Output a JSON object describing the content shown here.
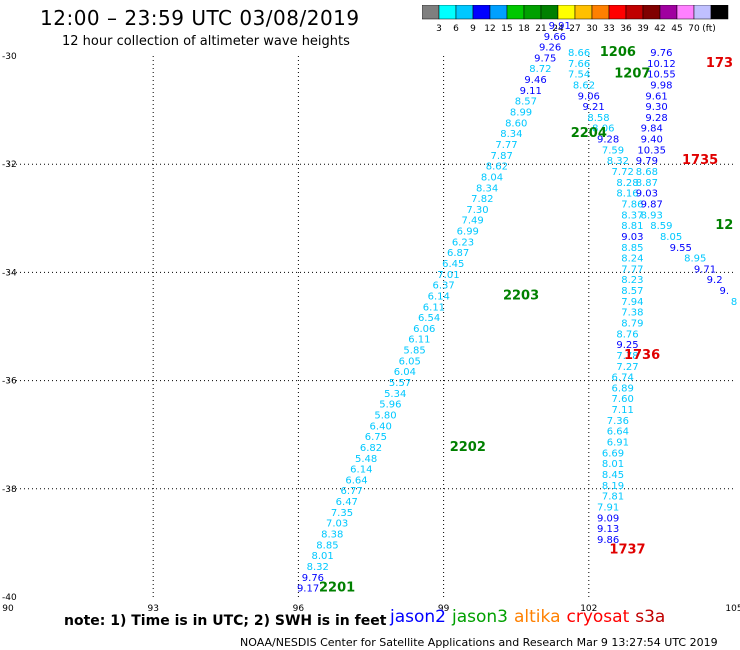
{
  "header": {
    "title": "12:00 – 23:59 UTC 03/08/2019",
    "subtitle": "12 hour collection of altimeter wave heights"
  },
  "color_scale": {
    "colors": [
      "#7f7f7f",
      "#00ffff",
      "#00c8ff",
      "#0000ff",
      "#00a0ff",
      "#00c800",
      "#00a000",
      "#008000",
      "#ffff00",
      "#ffc000",
      "#ff8000",
      "#ff0000",
      "#c00000",
      "#800000",
      "#a000a0",
      "#ff80ff",
      "#c0c0ff",
      "#000000"
    ],
    "labels": [
      "3",
      "6",
      "9",
      "12",
      "15",
      "18",
      "21",
      "24",
      "27",
      "30",
      "33",
      "36",
      "39",
      "42",
      "45",
      "70",
      "(ft)"
    ]
  },
  "note": "note: 1) Time is in UTC; 2) SWH is in feet",
  "legend": [
    {
      "name": "jason2",
      "color": "#0000ff"
    },
    {
      "name": "jason3",
      "color": "#00a000"
    },
    {
      "name": "altika",
      "color": "#ff8000"
    },
    {
      "name": "cryosat",
      "color": "#ff0000"
    },
    {
      "name": "s3a",
      "color": "#c00000"
    }
  ],
  "footer": "NOAA/NESDIS Center for Satellite Applications and Research    Mar  9 13:27:54 UTC 2019",
  "chart_data": {
    "type": "scatter",
    "xlim": [
      90,
      105
    ],
    "ylim": [
      -40,
      -30
    ],
    "x_ticks": [
      "90",
      "93",
      "96",
      "99",
      "102",
      "105"
    ],
    "y_ticks": [
      "-30",
      "-32",
      "-34",
      "-36",
      "-38",
      "-40"
    ],
    "grid": true,
    "time_labels": [
      {
        "text": "2201",
        "lon": 96.8,
        "lat": -39.9,
        "color": "#008000"
      },
      {
        "text": "2202",
        "lon": 99.5,
        "lat": -37.3,
        "color": "#008000"
      },
      {
        "text": "2203",
        "lon": 100.6,
        "lat": -34.5,
        "color": "#008000"
      },
      {
        "text": "2204",
        "lon": 102.0,
        "lat": -31.5,
        "color": "#008000"
      },
      {
        "text": "1206",
        "lon": 102.6,
        "lat": -30.0,
        "color": "#008000"
      },
      {
        "text": "1207",
        "lon": 102.9,
        "lat": -30.4,
        "color": "#008000"
      },
      {
        "text": "12",
        "lon": 104.8,
        "lat": -33.2,
        "color": "#008000"
      },
      {
        "text": "1735",
        "lon": 104.3,
        "lat": -32.0,
        "color": "#e00000"
      },
      {
        "text": "173",
        "lon": 104.7,
        "lat": -30.2,
        "color": "#e00000"
      },
      {
        "text": "1736",
        "lon": 103.1,
        "lat": -35.6,
        "color": "#e00000"
      },
      {
        "text": "1737",
        "lon": 102.8,
        "lat": -39.2,
        "color": "#e00000"
      }
    ],
    "series": [
      {
        "name": "jason3",
        "points": [
          {
            "lon": 96.2,
            "lat": -39.9,
            "v": "9.17",
            "c": "#0000ff"
          },
          {
            "lon": 96.3,
            "lat": -39.7,
            "v": "9.76",
            "c": "#0000ff"
          },
          {
            "lon": 96.4,
            "lat": -39.5,
            "v": "8.32",
            "c": "#00c8ff"
          },
          {
            "lon": 96.5,
            "lat": -39.3,
            "v": "8.01",
            "c": "#00c8ff"
          },
          {
            "lon": 96.6,
            "lat": -39.1,
            "v": "8.85",
            "c": "#00c8ff"
          },
          {
            "lon": 96.7,
            "lat": -38.9,
            "v": "8.38",
            "c": "#00c8ff"
          },
          {
            "lon": 96.8,
            "lat": -38.7,
            "v": "7.03",
            "c": "#00c8ff"
          },
          {
            "lon": 96.9,
            "lat": -38.5,
            "v": "7.35",
            "c": "#00c8ff"
          },
          {
            "lon": 97.0,
            "lat": -38.3,
            "v": "6.47",
            "c": "#00c8ff"
          },
          {
            "lon": 97.1,
            "lat": -38.1,
            "v": "6.77",
            "c": "#00c8ff"
          },
          {
            "lon": 97.2,
            "lat": -37.9,
            "v": "6.64",
            "c": "#00c8ff"
          },
          {
            "lon": 97.3,
            "lat": -37.7,
            "v": "6.14",
            "c": "#00c8ff"
          },
          {
            "lon": 97.4,
            "lat": -37.5,
            "v": "5.48",
            "c": "#00c8ff"
          },
          {
            "lon": 97.5,
            "lat": -37.3,
            "v": "6.82",
            "c": "#00c8ff"
          },
          {
            "lon": 97.6,
            "lat": -37.1,
            "v": "6.75",
            "c": "#00c8ff"
          },
          {
            "lon": 97.7,
            "lat": -36.9,
            "v": "6.40",
            "c": "#00c8ff"
          },
          {
            "lon": 97.8,
            "lat": -36.7,
            "v": "5.80",
            "c": "#00c8ff"
          },
          {
            "lon": 97.9,
            "lat": -36.5,
            "v": "5.96",
            "c": "#00c8ff"
          },
          {
            "lon": 98.0,
            "lat": -36.3,
            "v": "5.34",
            "c": "#00c8ff"
          },
          {
            "lon": 98.1,
            "lat": -36.1,
            "v": "5.57",
            "c": "#00c8ff"
          },
          {
            "lon": 98.2,
            "lat": -35.9,
            "v": "6.04",
            "c": "#00c8ff"
          },
          {
            "lon": 98.3,
            "lat": -35.7,
            "v": "6.05",
            "c": "#00c8ff"
          },
          {
            "lon": 98.4,
            "lat": -35.5,
            "v": "5.85",
            "c": "#00c8ff"
          },
          {
            "lon": 98.5,
            "lat": -35.3,
            "v": "6.11",
            "c": "#00c8ff"
          },
          {
            "lon": 98.6,
            "lat": -35.1,
            "v": "6.06",
            "c": "#00c8ff"
          },
          {
            "lon": 98.7,
            "lat": -34.9,
            "v": "6.54",
            "c": "#00c8ff"
          },
          {
            "lon": 98.8,
            "lat": -34.7,
            "v": "6.11",
            "c": "#00c8ff"
          },
          {
            "lon": 98.9,
            "lat": -34.5,
            "v": "6.14",
            "c": "#00c8ff"
          },
          {
            "lon": 99.0,
            "lat": -34.3,
            "v": "6.37",
            "c": "#00c8ff"
          },
          {
            "lon": 99.1,
            "lat": -34.1,
            "v": "7.01",
            "c": "#00c8ff"
          },
          {
            "lon": 99.2,
            "lat": -33.9,
            "v": "6.45",
            "c": "#00c8ff"
          },
          {
            "lon": 99.3,
            "lat": -33.7,
            "v": "6.87",
            "c": "#00c8ff"
          },
          {
            "lon": 99.4,
            "lat": -33.5,
            "v": "6.23",
            "c": "#00c8ff"
          },
          {
            "lon": 99.5,
            "lat": -33.3,
            "v": "6.99",
            "c": "#00c8ff"
          },
          {
            "lon": 99.6,
            "lat": -33.1,
            "v": "7.49",
            "c": "#00c8ff"
          },
          {
            "lon": 99.7,
            "lat": -32.9,
            "v": "7.30",
            "c": "#00c8ff"
          },
          {
            "lon": 99.8,
            "lat": -32.7,
            "v": "7.82",
            "c": "#00c8ff"
          },
          {
            "lon": 99.9,
            "lat": -32.5,
            "v": "8.34",
            "c": "#00c8ff"
          },
          {
            "lon": 100.0,
            "lat": -32.3,
            "v": "8.04",
            "c": "#00c8ff"
          },
          {
            "lon": 100.1,
            "lat": -32.1,
            "v": "8.62",
            "c": "#00c8ff"
          },
          {
            "lon": 100.2,
            "lat": -31.9,
            "v": "7.87",
            "c": "#00c8ff"
          },
          {
            "lon": 100.3,
            "lat": -31.7,
            "v": "7.77",
            "c": "#00c8ff"
          },
          {
            "lon": 100.4,
            "lat": -31.5,
            "v": "8.34",
            "c": "#00c8ff"
          },
          {
            "lon": 100.5,
            "lat": -31.3,
            "v": "8.60",
            "c": "#00c8ff"
          },
          {
            "lon": 100.6,
            "lat": -31.1,
            "v": "8.99",
            "c": "#00c8ff"
          },
          {
            "lon": 100.7,
            "lat": -30.9,
            "v": "8.57",
            "c": "#00c8ff"
          },
          {
            "lon": 100.8,
            "lat": -30.7,
            "v": "9.11",
            "c": "#0000ff"
          },
          {
            "lon": 100.9,
            "lat": -30.5,
            "v": "9.46",
            "c": "#0000ff"
          },
          {
            "lon": 101.0,
            "lat": -30.3,
            "v": "8.72",
            "c": "#00c8ff"
          },
          {
            "lon": 101.1,
            "lat": -30.1,
            "v": "9.75",
            "c": "#0000ff"
          },
          {
            "lon": 101.2,
            "lat": -29.9,
            "v": "9.26",
            "c": "#0000ff"
          },
          {
            "lon": 101.3,
            "lat": -29.7,
            "v": "9.66",
            "c": "#0000ff"
          },
          {
            "lon": 101.4,
            "lat": -29.5,
            "v": "9.91",
            "c": "#0000ff"
          }
        ]
      },
      {
        "name": "jason2",
        "points": [
          {
            "lon": 101.8,
            "lat": -30.0,
            "v": "8.66",
            "c": "#00c8ff"
          },
          {
            "lon": 101.8,
            "lat": -30.2,
            "v": "7.66",
            "c": "#00c8ff"
          },
          {
            "lon": 101.8,
            "lat": -30.4,
            "v": "7.54",
            "c": "#00c8ff"
          },
          {
            "lon": 101.9,
            "lat": -30.6,
            "v": "8.62",
            "c": "#00c8ff"
          },
          {
            "lon": 102.0,
            "lat": -30.8,
            "v": "9.06",
            "c": "#0000ff"
          },
          {
            "lon": 102.1,
            "lat": -31.0,
            "v": "9.21",
            "c": "#0000ff"
          },
          {
            "lon": 102.2,
            "lat": -31.2,
            "v": "8.58",
            "c": "#00c8ff"
          },
          {
            "lon": 102.3,
            "lat": -31.4,
            "v": "8.06",
            "c": "#00c8ff"
          },
          {
            "lon": 102.4,
            "lat": -31.6,
            "v": "9.28",
            "c": "#0000ff"
          },
          {
            "lon": 102.5,
            "lat": -31.8,
            "v": "7.59",
            "c": "#00c8ff"
          },
          {
            "lon": 102.6,
            "lat": -32.0,
            "v": "8.32",
            "c": "#00c8ff"
          },
          {
            "lon": 102.7,
            "lat": -32.2,
            "v": "7.72",
            "c": "#00c8ff"
          },
          {
            "lon": 102.8,
            "lat": -32.4,
            "v": "8.28",
            "c": "#00c8ff"
          },
          {
            "lon": 102.8,
            "lat": -32.6,
            "v": "8.16",
            "c": "#00c8ff"
          },
          {
            "lon": 102.9,
            "lat": -32.8,
            "v": "7.86",
            "c": "#00c8ff"
          },
          {
            "lon": 102.9,
            "lat": -33.0,
            "v": "8.37",
            "c": "#00c8ff"
          },
          {
            "lon": 102.9,
            "lat": -33.2,
            "v": "8.81",
            "c": "#00c8ff"
          },
          {
            "lon": 102.9,
            "lat": -33.4,
            "v": "9.03",
            "c": "#0000ff"
          },
          {
            "lon": 102.9,
            "lat": -33.6,
            "v": "8.85",
            "c": "#00c8ff"
          },
          {
            "lon": 102.9,
            "lat": -33.8,
            "v": "8.24",
            "c": "#00c8ff"
          },
          {
            "lon": 102.9,
            "lat": -34.0,
            "v": "7.77",
            "c": "#00c8ff"
          },
          {
            "lon": 102.9,
            "lat": -34.2,
            "v": "8.23",
            "c": "#00c8ff"
          },
          {
            "lon": 102.9,
            "lat": -34.4,
            "v": "8.57",
            "c": "#00c8ff"
          },
          {
            "lon": 102.9,
            "lat": -34.6,
            "v": "7.94",
            "c": "#00c8ff"
          },
          {
            "lon": 102.9,
            "lat": -34.8,
            "v": "7.38",
            "c": "#00c8ff"
          },
          {
            "lon": 102.9,
            "lat": -35.0,
            "v": "8.79",
            "c": "#00c8ff"
          },
          {
            "lon": 102.8,
            "lat": -35.2,
            "v": "8.76",
            "c": "#00c8ff"
          },
          {
            "lon": 102.8,
            "lat": -35.4,
            "v": "9.25",
            "c": "#0000ff"
          },
          {
            "lon": 102.8,
            "lat": -35.6,
            "v": "7.78",
            "c": "#00c8ff"
          },
          {
            "lon": 102.8,
            "lat": -35.8,
            "v": "7.27",
            "c": "#00c8ff"
          },
          {
            "lon": 102.7,
            "lat": -36.0,
            "v": "6.74",
            "c": "#00c8ff"
          },
          {
            "lon": 102.7,
            "lat": -36.2,
            "v": "6.89",
            "c": "#00c8ff"
          },
          {
            "lon": 102.7,
            "lat": -36.4,
            "v": "7.60",
            "c": "#00c8ff"
          },
          {
            "lon": 102.7,
            "lat": -36.6,
            "v": "7.11",
            "c": "#00c8ff"
          },
          {
            "lon": 102.6,
            "lat": -36.8,
            "v": "7.36",
            "c": "#00c8ff"
          },
          {
            "lon": 102.6,
            "lat": -37.0,
            "v": "6.64",
            "c": "#00c8ff"
          },
          {
            "lon": 102.6,
            "lat": -37.2,
            "v": "6.91",
            "c": "#00c8ff"
          },
          {
            "lon": 102.5,
            "lat": -37.4,
            "v": "6.69",
            "c": "#00c8ff"
          },
          {
            "lon": 102.5,
            "lat": -37.6,
            "v": "8.01",
            "c": "#00c8ff"
          },
          {
            "lon": 102.5,
            "lat": -37.8,
            "v": "8.45",
            "c": "#00c8ff"
          },
          {
            "lon": 102.5,
            "lat": -38.0,
            "v": "8.19",
            "c": "#00c8ff"
          },
          {
            "lon": 102.5,
            "lat": -38.2,
            "v": "7.81",
            "c": "#00c8ff"
          },
          {
            "lon": 102.4,
            "lat": -38.4,
            "v": "7.91",
            "c": "#00c8ff"
          },
          {
            "lon": 102.4,
            "lat": -38.6,
            "v": "9.09",
            "c": "#0000ff"
          },
          {
            "lon": 102.4,
            "lat": -38.8,
            "v": "9.13",
            "c": "#0000ff"
          },
          {
            "lon": 102.4,
            "lat": -39.0,
            "v": "9.86",
            "c": "#0000ff"
          }
        ]
      },
      {
        "name": "cryosat",
        "points": [
          {
            "lon": 103.5,
            "lat": -30.0,
            "v": "9.76",
            "c": "#0000ff"
          },
          {
            "lon": 103.5,
            "lat": -30.2,
            "v": "10.12",
            "c": "#0000ff"
          },
          {
            "lon": 103.5,
            "lat": -30.4,
            "v": "10.55",
            "c": "#0000ff"
          },
          {
            "lon": 103.5,
            "lat": -30.6,
            "v": "9.98",
            "c": "#0000ff"
          },
          {
            "lon": 103.4,
            "lat": -30.8,
            "v": "9.61",
            "c": "#0000ff"
          },
          {
            "lon": 103.4,
            "lat": -31.0,
            "v": "9.30",
            "c": "#0000ff"
          },
          {
            "lon": 103.4,
            "lat": -31.2,
            "v": "9.28",
            "c": "#0000ff"
          },
          {
            "lon": 103.3,
            "lat": -31.4,
            "v": "9.84",
            "c": "#0000ff"
          },
          {
            "lon": 103.3,
            "lat": -31.6,
            "v": "9.40",
            "c": "#0000ff"
          },
          {
            "lon": 103.3,
            "lat": -31.8,
            "v": "10.35",
            "c": "#0000ff"
          },
          {
            "lon": 103.2,
            "lat": -32.0,
            "v": "9.79",
            "c": "#0000ff"
          },
          {
            "lon": 103.2,
            "lat": -32.2,
            "v": "8.68",
            "c": "#00c8ff"
          },
          {
            "lon": 103.2,
            "lat": -32.4,
            "v": "8.87",
            "c": "#00c8ff"
          },
          {
            "lon": 103.2,
            "lat": -32.6,
            "v": "9.03",
            "c": "#0000ff"
          },
          {
            "lon": 103.3,
            "lat": -32.8,
            "v": "9.87",
            "c": "#0000ff"
          },
          {
            "lon": 103.3,
            "lat": -33.0,
            "v": "8.93",
            "c": "#00c8ff"
          },
          {
            "lon": 103.5,
            "lat": -33.2,
            "v": "8.59",
            "c": "#00c8ff"
          },
          {
            "lon": 103.7,
            "lat": -33.4,
            "v": "8.05",
            "c": "#00c8ff"
          },
          {
            "lon": 103.9,
            "lat": -33.6,
            "v": "9.55",
            "c": "#0000ff"
          },
          {
            "lon": 104.2,
            "lat": -33.8,
            "v": "8.95",
            "c": "#00c8ff"
          },
          {
            "lon": 104.4,
            "lat": -34.0,
            "v": "9.71",
            "c": "#0000ff"
          },
          {
            "lon": 104.6,
            "lat": -34.2,
            "v": "9.2",
            "c": "#0000ff"
          },
          {
            "lon": 104.8,
            "lat": -34.4,
            "v": "9.",
            "c": "#0000ff"
          },
          {
            "lon": 105.0,
            "lat": -34.6,
            "v": "8",
            "c": "#00c8ff"
          }
        ]
      }
    ]
  }
}
